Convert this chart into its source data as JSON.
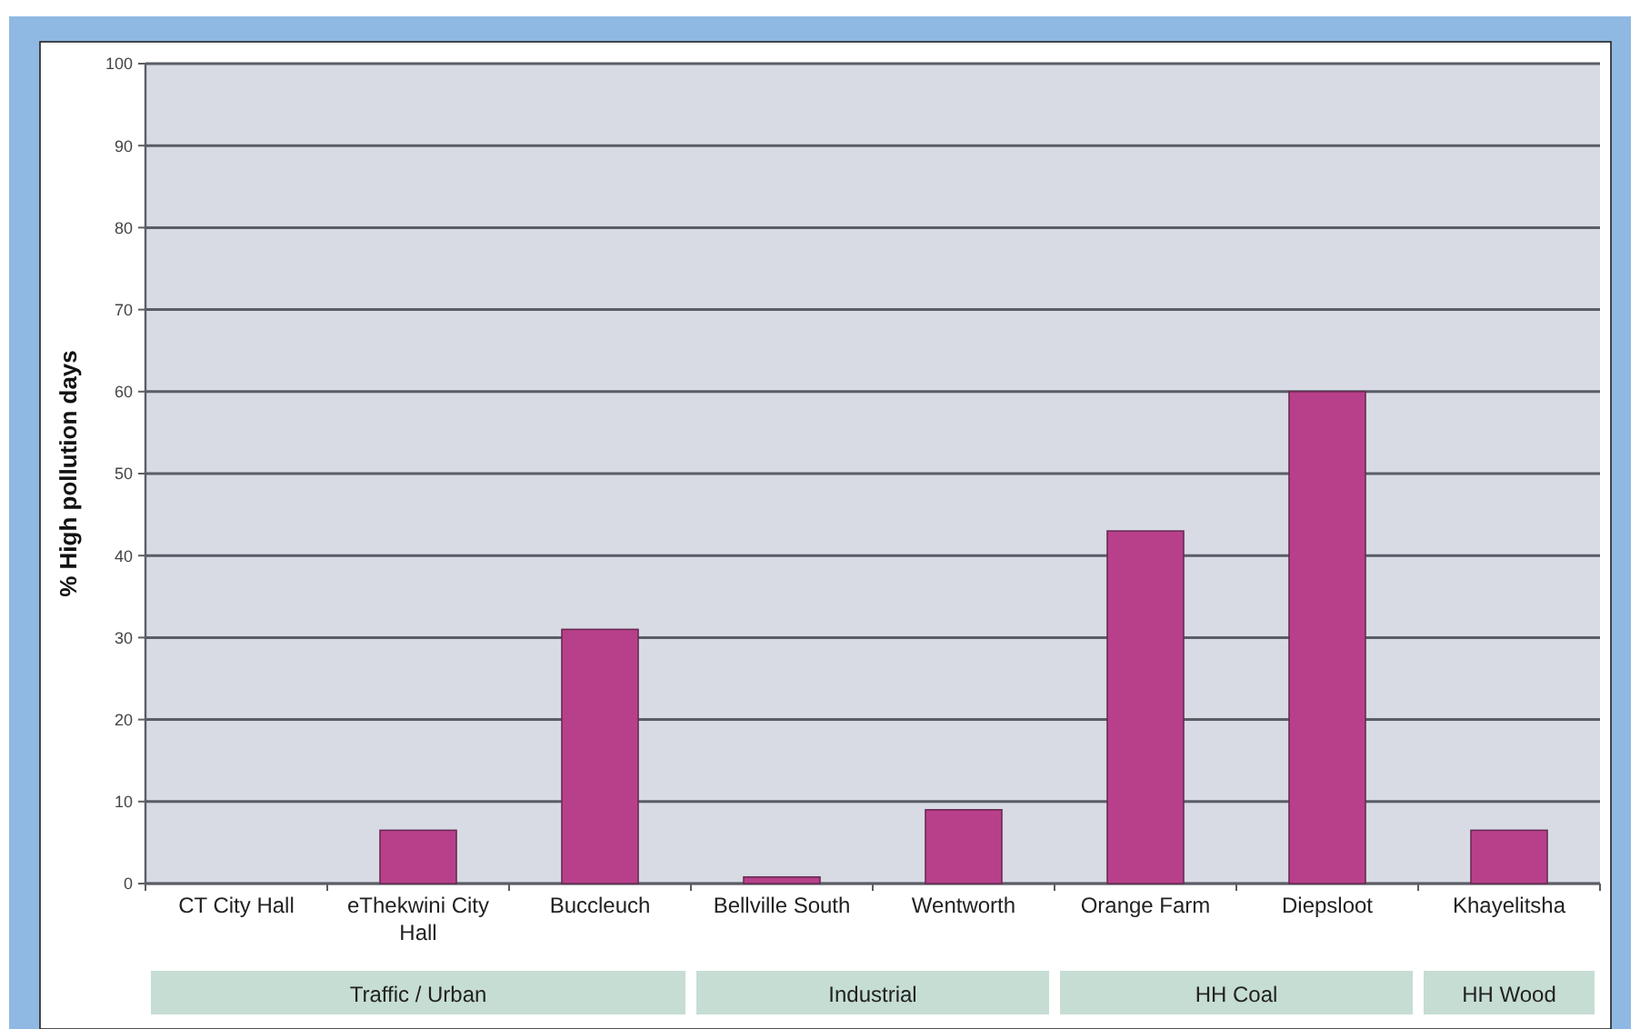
{
  "chart_data": {
    "type": "bar",
    "ylabel": "% High pollution days",
    "categories": [
      "CT City Hall",
      "eThekwini City Hall",
      "Buccleuch",
      "Bellville South",
      "Wentworth",
      "Orange Farm",
      "Diepsloot",
      "Khayelitsha"
    ],
    "values": [
      0,
      6.5,
      31,
      0.8,
      9,
      43,
      60,
      6.5
    ],
    "color": "#b8408a",
    "ylim": [
      0,
      100
    ],
    "yticks": [
      0,
      10,
      20,
      30,
      40,
      50,
      60,
      70,
      80,
      90,
      100
    ],
    "grid": "y",
    "annotations": [
      "Traffic / Urban",
      "Industrial",
      "HH Coal",
      "HH Wood"
    ]
  }
}
